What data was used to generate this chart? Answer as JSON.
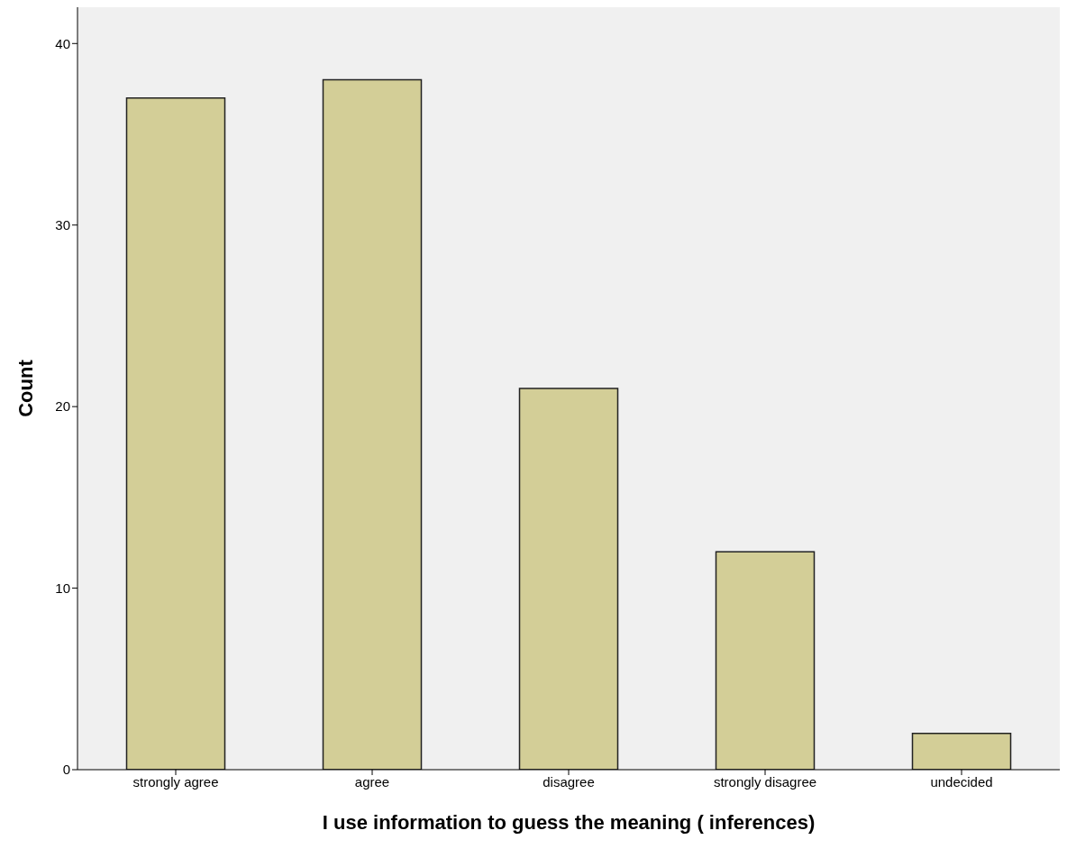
{
  "chart_data": {
    "type": "bar",
    "xlabel": "I use information to guess the meaning ( inferences)",
    "ylabel": "Count",
    "categories": [
      "strongly agree",
      "agree",
      "disagree",
      "strongly disagree",
      "undecided"
    ],
    "values": [
      37,
      38,
      21,
      12,
      2
    ],
    "color": "#d3ce97",
    "ylim": [
      0,
      42
    ],
    "yticks": [
      0,
      10,
      20,
      30,
      40
    ],
    "grid": false
  }
}
